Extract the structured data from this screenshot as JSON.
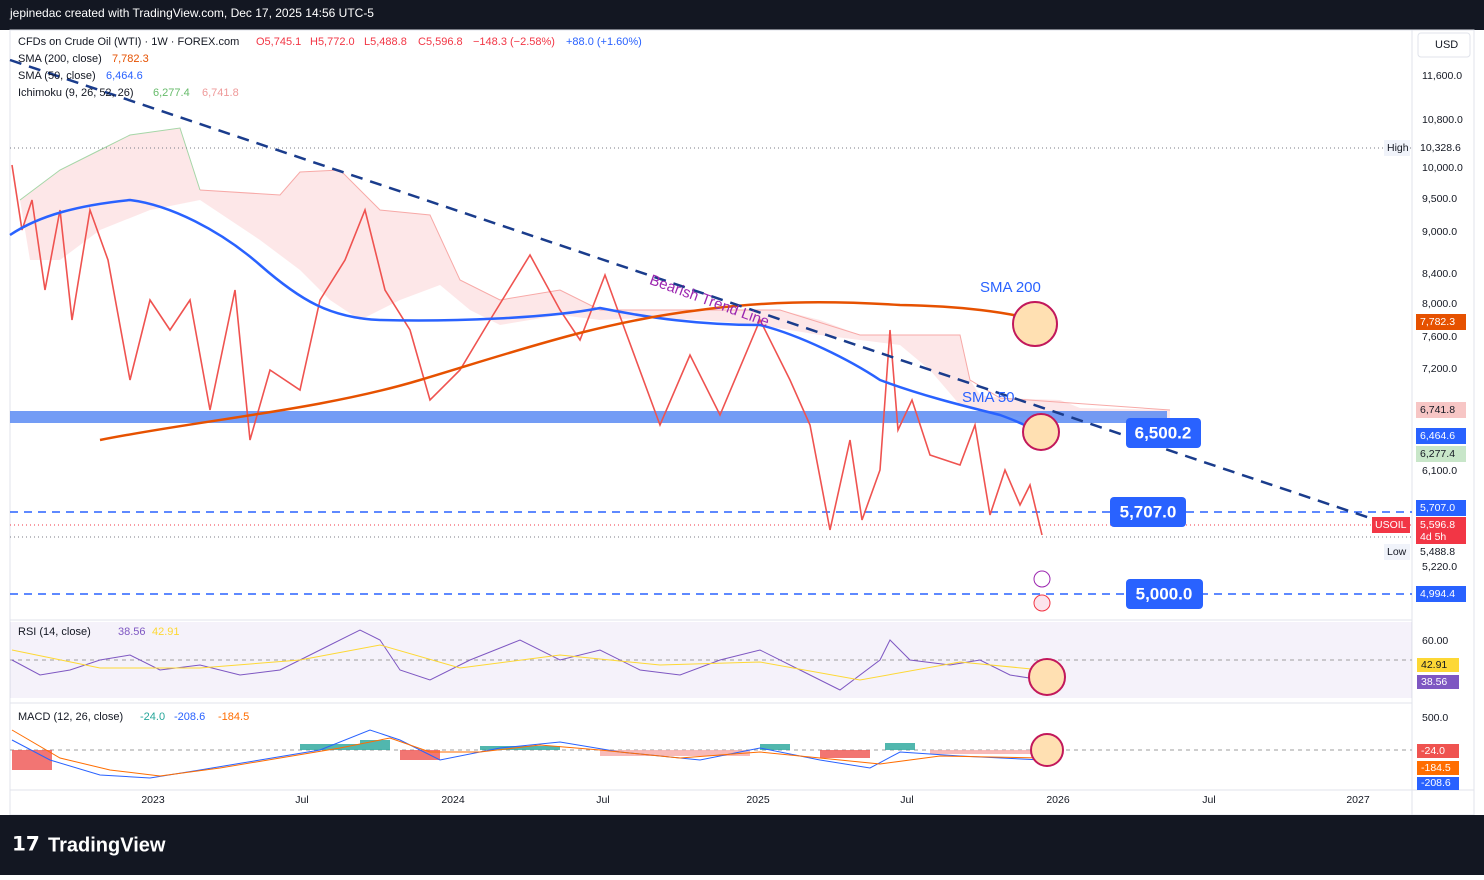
{
  "header": {
    "credit": "jepinedac created with TradingView.com, Dec 17, 2025 14:56 UTC-5"
  },
  "legend": {
    "symbol": "CFDs on Crude Oil (WTI) · 1W · FOREX.com",
    "open": "O5,745.1",
    "high": "H5,772.0",
    "low": "L5,488.8",
    "close": "C5,596.8",
    "change": "−148.3 (−2.58%)",
    "after": "+88.0 (+1.60%)",
    "sma200": {
      "name": "SMA (200, close)",
      "value": "7,782.3"
    },
    "sma50": {
      "name": "SMA (50, close)",
      "value": "6,464.6"
    },
    "ichimoku": {
      "name": "Ichimoku (9, 26, 52, 26)",
      "lead1": "6,277.4",
      "lead2": "6,741.8"
    }
  },
  "currency": "USD",
  "price_axis": [
    "11,600.0",
    "10,800.0",
    "10,000.0",
    "9,500.0",
    "9,000.0",
    "8,400.0",
    "8,000.0",
    "7,600.0",
    "7,200.0",
    "6,100.0",
    "5,220.0"
  ],
  "badges": {
    "high_label": "High",
    "high": "10,328.6",
    "sma200": "7,782.3",
    "lead2": "6,741.8",
    "sma50": "6,464.6",
    "lead1": "6,277.4",
    "level": "5,707.0",
    "symbol": "USOIL",
    "price": "5,596.8",
    "countdown": "4d 5h",
    "low_label": "Low",
    "low": "5,488.8",
    "support": "4,994.4"
  },
  "annotations": {
    "trend": "Bearish Trend Line",
    "sma200": "SMA 200",
    "sma50": "SMA 50",
    "resistance": "6,500.2",
    "level": "5,707.0",
    "support": "5,000.0"
  },
  "rsi": {
    "name": "RSI (14, close)",
    "value": "38.56",
    "ma": "42.91",
    "axis": "60.00"
  },
  "macd": {
    "name": "MACD (12, 26, close)",
    "hist": "-24.0",
    "macd": "-208.6",
    "signal": "-184.5",
    "axis": "500.0"
  },
  "time_axis": [
    "2023",
    "Jul",
    "2024",
    "Jul",
    "2025",
    "Jul",
    "2026",
    "Jul",
    "2027"
  ],
  "footer": {
    "brand": "TradingView"
  }
}
